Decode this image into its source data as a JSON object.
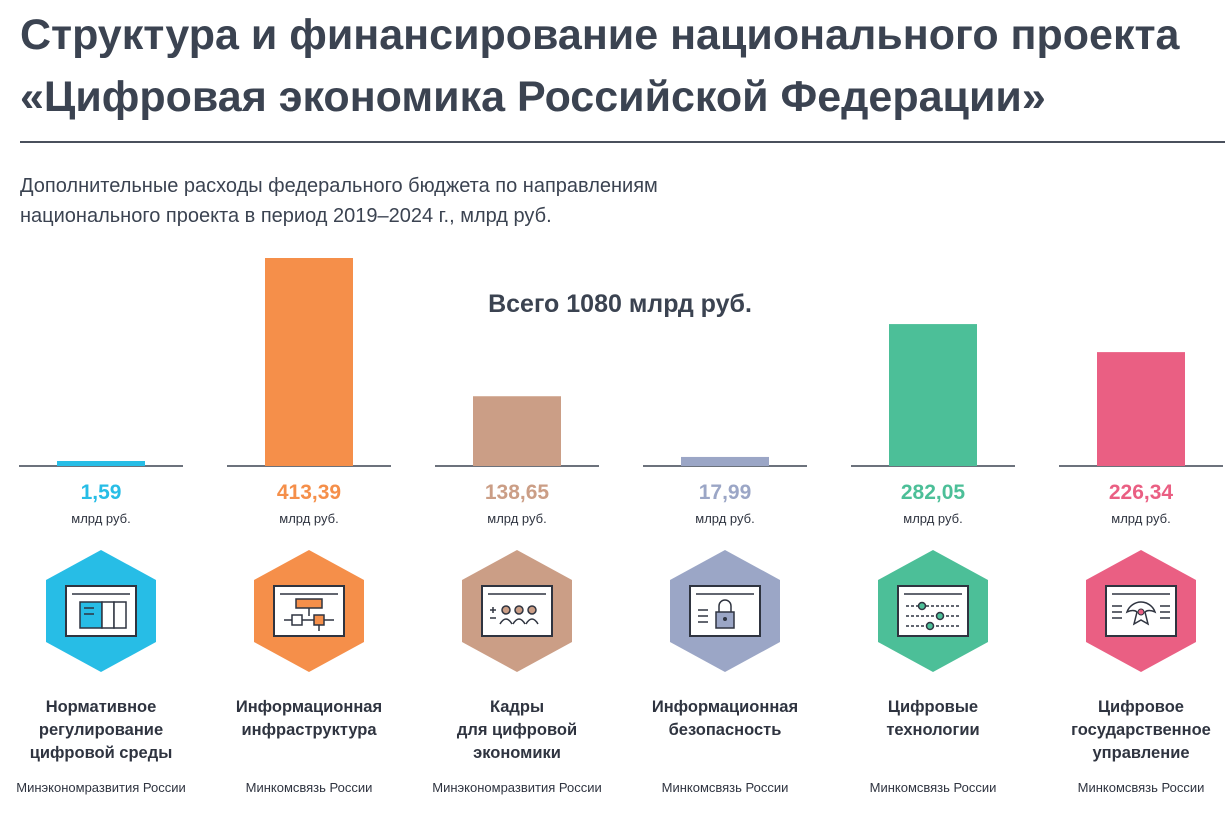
{
  "title": {
    "line1": "Структура и финансирование национального проекта",
    "line2": "«Цифровая экономика Российской Федерации»"
  },
  "subtitle": {
    "line1": "Дополнительные расходы федерального бюджета по направлениям",
    "line2": "национального проекта в период 2019–2024 г., млрд руб."
  },
  "total": "Всего 1080 млрд руб.",
  "unit": "млрд руб.",
  "colors": {
    "reg": "#27bde6",
    "infra": "#f58f4a",
    "kadry": "#cb9e86",
    "security": "#9ba6c6",
    "tech": "#4cbf98",
    "gov": "#ea5f83",
    "text": "#3b4351"
  },
  "chart_data": {
    "type": "bar",
    "title": "Дополнительные расходы федерального бюджета по направлениям национального проекта в период 2019–2024 г., млрд руб.",
    "categories": [
      "Нормативное регулирование цифровой среды",
      "Информационная инфраструктура",
      "Кадры для цифровой экономики",
      "Информационная безопасность",
      "Цифровые технологии",
      "Цифровое государственное управление"
    ],
    "values": [
      1.59,
      413.39,
      138.65,
      17.99,
      282.05,
      226.34
    ],
    "value_labels": [
      "1,59",
      "413,39",
      "138,65",
      "17,99",
      "282,05",
      "226,34"
    ],
    "colors": [
      "#27bde6",
      "#f58f4a",
      "#cb9e86",
      "#9ba6c6",
      "#4cbf98",
      "#ea5f83"
    ],
    "ylim": [
      0,
      413.39
    ],
    "grid": false,
    "annotation": "Всего 1080 млрд руб."
  },
  "projects": [
    {
      "value": "1,59",
      "color": "#27bde6",
      "icon": "document-panel-icon",
      "name_lines": [
        "Нормативное",
        "регулирование",
        "цифровой среды"
      ],
      "ministry": "Минэкономразвития России"
    },
    {
      "value": "413,39",
      "color": "#f58f4a",
      "icon": "network-diagram-icon",
      "name_lines": [
        "Информационная",
        "инфраструктура"
      ],
      "ministry": "Минкомсвязь России"
    },
    {
      "value": "138,65",
      "color": "#cb9e86",
      "icon": "people-icon",
      "name_lines": [
        "Кадры",
        "для цифровой",
        "экономики"
      ],
      "ministry": "Минэкономразвития России"
    },
    {
      "value": "17,99",
      "color": "#9ba6c6",
      "icon": "lock-icon",
      "name_lines": [
        "Информационная",
        "безопасность"
      ],
      "ministry": "Минкомсвязь России"
    },
    {
      "value": "282,05",
      "color": "#4cbf98",
      "icon": "sliders-icon",
      "name_lines": [
        "Цифровые",
        "технологии"
      ],
      "ministry": "Минкомсвязь России"
    },
    {
      "value": "226,34",
      "color": "#ea5f83",
      "icon": "coat-of-arms-icon",
      "name_lines": [
        "Цифровое",
        "государственное",
        "управление"
      ],
      "ministry": "Минкомсвязь России"
    }
  ]
}
